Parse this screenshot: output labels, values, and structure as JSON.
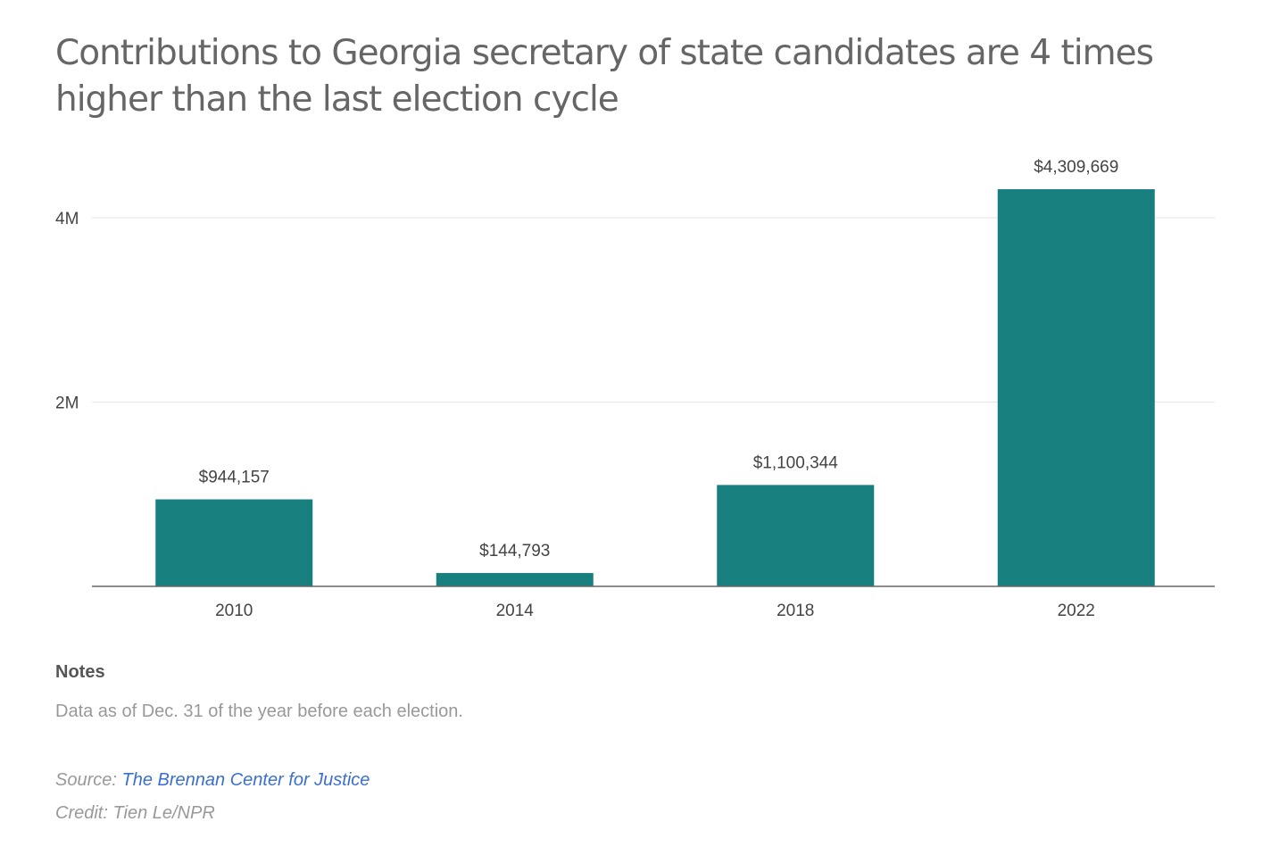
{
  "chart_data": {
    "type": "bar",
    "title": "Contributions to Georgia secretary of state candidates are 4 times higher than the last election cycle",
    "categories": [
      "2010",
      "2014",
      "2018",
      "2022"
    ],
    "values": [
      944157,
      144793,
      1100344,
      4309669
    ],
    "data_labels": [
      "$944,157",
      "$144,793",
      "$1,100,344",
      "$4,309,669"
    ],
    "y_ticks": [
      {
        "value": 2000000,
        "label": "2M"
      },
      {
        "value": 4000000,
        "label": "4M"
      }
    ],
    "ylim": [
      0,
      4000000
    ],
    "grid": true,
    "bar_color": "#17807e",
    "xlabel": "",
    "ylabel": ""
  },
  "notes": {
    "heading": "Notes",
    "text": "Data as of Dec. 31 of the year before each election."
  },
  "source": {
    "label": "Source:",
    "link_text": "The Brennan Center for Justice"
  },
  "credit": "Credit: Tien Le/NPR"
}
